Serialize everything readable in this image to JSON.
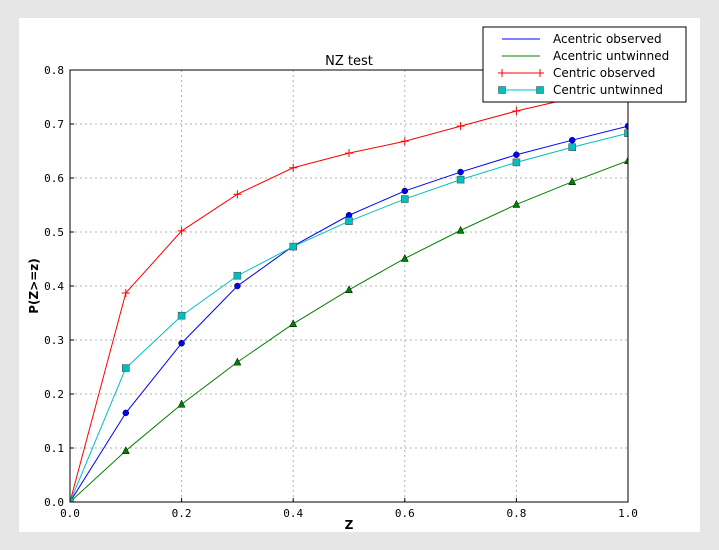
{
  "chart_data": {
    "type": "line",
    "title": "NZ test",
    "xlabel": "Z",
    "ylabel": "P(Z>=z)",
    "xlim": [
      0,
      1
    ],
    "ylim": [
      0,
      0.8
    ],
    "grid": true,
    "legend_position": "top-right",
    "xticks": [
      "0.0",
      "0.2",
      "0.4",
      "0.6",
      "0.8",
      "1.0"
    ],
    "yticks": [
      "0.0",
      "0.1",
      "0.2",
      "0.3",
      "0.4",
      "0.5",
      "0.6",
      "0.7",
      "0.8"
    ],
    "x": [
      0,
      0.1,
      0.2,
      0.3,
      0.4,
      0.5,
      0.6,
      0.7,
      0.8,
      0.9,
      1.0
    ],
    "series": [
      {
        "name": "Acentric observed",
        "color": "#0000ff",
        "marker": "circle",
        "values": [
          0,
          0.165,
          0.294,
          0.4,
          0.474,
          0.531,
          0.576,
          0.611,
          0.643,
          0.67,
          0.696
        ]
      },
      {
        "name": "Acentric untwinned",
        "color": "#008000",
        "marker": "triangle",
        "values": [
          0,
          0.095,
          0.181,
          0.259,
          0.33,
          0.393,
          0.451,
          0.503,
          0.551,
          0.593,
          0.632
        ]
      },
      {
        "name": "Centric observed",
        "color": "#ff0000",
        "marker": "plus",
        "values": [
          0,
          0.387,
          0.502,
          0.57,
          0.619,
          0.646,
          0.668,
          0.696,
          0.724,
          0.748,
          0.77
        ]
      },
      {
        "name": "Centric untwinned",
        "color": "#00bfbf",
        "marker": "square",
        "values": [
          0,
          0.248,
          0.345,
          0.419,
          0.473,
          0.52,
          0.561,
          0.597,
          0.629,
          0.657,
          0.683
        ]
      }
    ]
  }
}
